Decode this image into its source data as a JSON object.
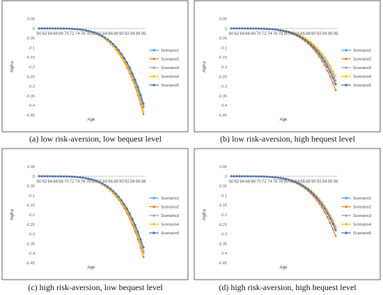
{
  "captions": [
    "(a) low risk-aversion, low bequest level",
    "(b) low risk-aversion, high bequest level",
    "(c) high risk-aversion, low bequest level",
    "(d) high risk-aversion, high bequest level"
  ],
  "colors": {
    "Scenario1": "#5B9BD5",
    "Scenario2": "#ED7D31",
    "Scenario3": "#A5A5A5",
    "Scenario4": "#FFC000",
    "Scenario5": "#4472C4"
  },
  "chart_data": [
    {
      "type": "line",
      "panel": "a",
      "xlabel": "Age",
      "ylabel": "Alpha",
      "ylim": [
        -0.45,
        0.05
      ],
      "yticks": [
        "0.05",
        "0",
        "-0.05",
        "-0.1",
        "-0.15",
        "-0.2",
        "-0.25",
        "-0.3",
        "-0.35",
        "-0.4",
        "-0.45"
      ],
      "xticks": [
        "60",
        "62",
        "64",
        "66",
        "68",
        "70",
        "72",
        "74",
        "76",
        "78",
        "80",
        "82",
        "84",
        "86",
        "88",
        "90",
        "92",
        "94",
        "96",
        "98"
      ],
      "x_range": [
        60,
        98
      ],
      "legend_position": "right",
      "series": [
        {
          "name": "Scenario1",
          "end": -0.41
        },
        {
          "name": "Scenario2",
          "end": -0.445
        },
        {
          "name": "Scenario3",
          "end": -0.4
        },
        {
          "name": "Scenario4",
          "end": -0.43
        },
        {
          "name": "Scenario5",
          "end": -0.39
        }
      ]
    },
    {
      "type": "line",
      "panel": "b",
      "xlabel": "Age",
      "ylabel": "Alpha",
      "ylim": [
        -0.45,
        0.05
      ],
      "yticks": [
        "0.05",
        "0",
        "-0.05",
        "-0.1",
        "-0.15",
        "-0.2",
        "-0.25",
        "-0.3",
        "-0.35",
        "-0.4",
        "-0.45"
      ],
      "xticks": [
        "60",
        "62",
        "64",
        "66",
        "68",
        "70",
        "72",
        "74",
        "76",
        "78",
        "80",
        "82",
        "84",
        "86",
        "88",
        "90",
        "92",
        "94",
        "96",
        "98"
      ],
      "x_range": [
        60,
        98
      ],
      "legend_position": "right",
      "series": [
        {
          "name": "Scenario1",
          "end": -0.29
        },
        {
          "name": "Scenario2",
          "end": -0.32
        },
        {
          "name": "Scenario3",
          "end": -0.27
        },
        {
          "name": "Scenario4",
          "end": -0.25
        },
        {
          "name": "Scenario5",
          "end": -0.29
        }
      ]
    },
    {
      "type": "line",
      "panel": "c",
      "xlabel": "Age",
      "ylabel": "Alpha",
      "ylim": [
        -0.45,
        0.05
      ],
      "yticks": [
        "0.05",
        "0",
        "-0.05",
        "-0.1",
        "-0.15",
        "-0.2",
        "-0.25",
        "-0.3",
        "-0.35",
        "-0.4",
        "-0.45"
      ],
      "xticks": [
        "60",
        "62",
        "64",
        "66",
        "68",
        "70",
        "72",
        "74",
        "76",
        "78",
        "80",
        "82",
        "84",
        "86",
        "88",
        "90",
        "92",
        "94",
        "96",
        "98"
      ],
      "x_range": [
        60,
        98
      ],
      "legend_position": "right",
      "series": [
        {
          "name": "Scenario1",
          "end": -0.39
        },
        {
          "name": "Scenario2",
          "end": -0.42
        },
        {
          "name": "Scenario3",
          "end": -0.37
        },
        {
          "name": "Scenario4",
          "end": -0.4
        },
        {
          "name": "Scenario5",
          "end": -0.37
        }
      ]
    },
    {
      "type": "line",
      "panel": "d",
      "xlabel": "Age",
      "ylabel": "Alpha",
      "ylim": [
        -0.45,
        0.05
      ],
      "yticks": [
        "0.05",
        "0",
        "-0.05",
        "-0.1",
        "-0.15",
        "-0.2",
        "-0.25",
        "-0.3",
        "-0.35",
        "-0.4",
        "-0.45"
      ],
      "xticks": [
        "60",
        "62",
        "64",
        "66",
        "68",
        "70",
        "72",
        "74",
        "76",
        "78",
        "80",
        "82",
        "84",
        "86",
        "88",
        "90",
        "92",
        "94",
        "96",
        "98"
      ],
      "x_range": [
        60,
        98
      ],
      "legend_position": "right",
      "series": [
        {
          "name": "Scenario1",
          "end": -0.28
        },
        {
          "name": "Scenario2",
          "end": -0.31
        },
        {
          "name": "Scenario3",
          "end": -0.26
        },
        {
          "name": "Scenario4",
          "end": -0.27
        },
        {
          "name": "Scenario5",
          "end": -0.28
        }
      ]
    }
  ]
}
